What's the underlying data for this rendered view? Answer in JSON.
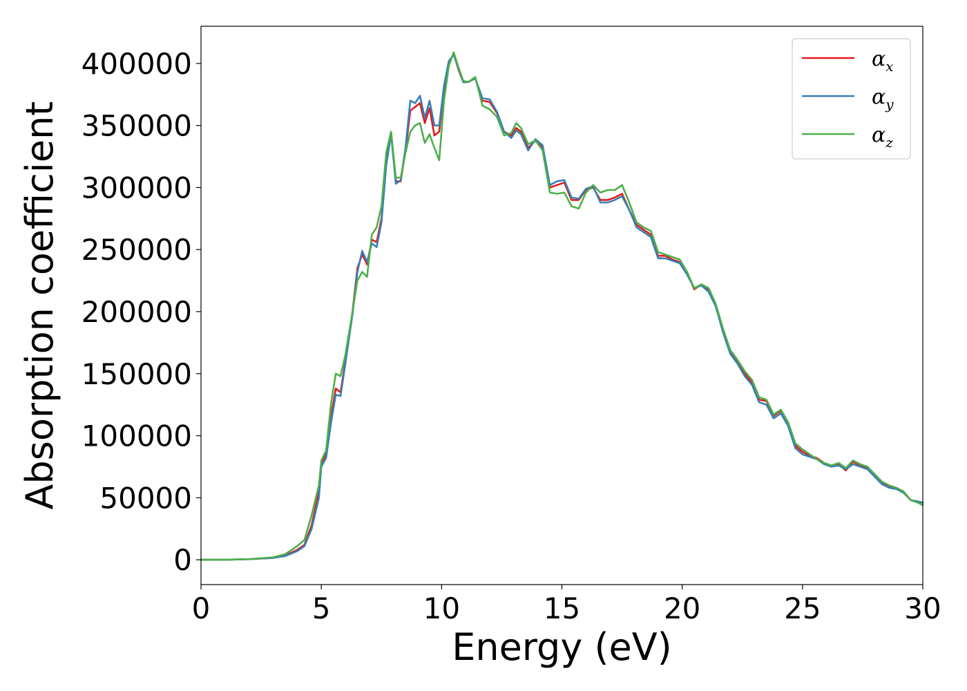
{
  "chart_data": {
    "type": "line",
    "title": "",
    "xlabel": "Energy (eV)",
    "ylabel": "Absorption coefficient",
    "xlim": [
      0,
      30
    ],
    "ylim": [
      -20000,
      430000
    ],
    "xticks": [
      0,
      5,
      10,
      15,
      20,
      25,
      30
    ],
    "yticks": [
      0,
      50000,
      100000,
      150000,
      200000,
      250000,
      300000,
      350000,
      400000
    ],
    "grid": false,
    "legend": "top-right",
    "series": [
      {
        "name": "αx",
        "symbol": "α",
        "subscript": "x",
        "color": "#e41a1c",
        "x": [
          0,
          1,
          2,
          3,
          3.5,
          4,
          4.3,
          4.6,
          4.9,
          5.0,
          5.2,
          5.4,
          5.6,
          5.8,
          6.0,
          6.3,
          6.5,
          6.7,
          6.9,
          7.1,
          7.3,
          7.5,
          7.7,
          7.9,
          8.1,
          8.3,
          8.5,
          8.7,
          8.9,
          9.1,
          9.3,
          9.5,
          9.7,
          9.9,
          10.1,
          10.3,
          10.5,
          10.7,
          10.9,
          11.1,
          11.4,
          11.7,
          12.0,
          12.3,
          12.6,
          12.9,
          13.1,
          13.3,
          13.6,
          13.9,
          14.2,
          14.5,
          14.8,
          15.1,
          15.4,
          15.7,
          16.0,
          16.3,
          16.6,
          16.9,
          17.2,
          17.5,
          17.8,
          18.1,
          18.4,
          18.7,
          19.0,
          19.3,
          19.6,
          19.9,
          20.2,
          20.5,
          20.8,
          21.1,
          21.4,
          21.7,
          22.0,
          22.3,
          22.6,
          22.9,
          23.2,
          23.5,
          23.8,
          24.1,
          24.4,
          24.7,
          25.0,
          25.3,
          25.6,
          25.9,
          26.2,
          26.5,
          26.8,
          27.1,
          27.4,
          27.7,
          28.0,
          28.3,
          28.6,
          28.9,
          29.2,
          29.5,
          29.8,
          30.0
        ],
        "values": [
          0,
          0,
          500,
          1500,
          3500,
          8000,
          12000,
          28000,
          55000,
          78000,
          85000,
          115000,
          138000,
          135000,
          160000,
          200000,
          235000,
          246000,
          238000,
          258000,
          256000,
          275000,
          320000,
          344000,
          305000,
          305000,
          330000,
          362000,
          365000,
          368000,
          352000,
          364000,
          342000,
          345000,
          380000,
          400000,
          408000,
          395000,
          385000,
          385000,
          388000,
          370000,
          369000,
          360000,
          345000,
          342000,
          348000,
          345000,
          332000,
          338000,
          332000,
          300000,
          302000,
          304000,
          290000,
          290000,
          298000,
          300000,
          290000,
          290000,
          292000,
          295000,
          282000,
          270000,
          266000,
          262000,
          245000,
          245000,
          242000,
          240000,
          232000,
          218000,
          222000,
          217000,
          205000,
          185000,
          168000,
          160000,
          150000,
          143000,
          129000,
          128000,
          116000,
          120000,
          110000,
          92000,
          87000,
          84000,
          82000,
          78000,
          76000,
          77000,
          72000,
          79000,
          76000,
          74000,
          68000,
          62000,
          59000,
          58000,
          55000,
          48000,
          47000,
          46000
        ]
      },
      {
        "name": "αy",
        "symbol": "α",
        "subscript": "y",
        "color": "#377eb8",
        "x": [
          0,
          1,
          2,
          3,
          3.5,
          4,
          4.3,
          4.6,
          4.9,
          5.0,
          5.2,
          5.4,
          5.6,
          5.8,
          6.0,
          6.3,
          6.5,
          6.7,
          6.9,
          7.1,
          7.3,
          7.5,
          7.7,
          7.9,
          8.1,
          8.3,
          8.5,
          8.7,
          8.9,
          9.1,
          9.3,
          9.5,
          9.7,
          9.9,
          10.1,
          10.3,
          10.5,
          10.7,
          10.9,
          11.1,
          11.4,
          11.7,
          12.0,
          12.3,
          12.6,
          12.9,
          13.1,
          13.3,
          13.6,
          13.9,
          14.2,
          14.5,
          14.8,
          15.1,
          15.4,
          15.7,
          16.0,
          16.3,
          16.6,
          16.9,
          17.2,
          17.5,
          17.8,
          18.1,
          18.4,
          18.7,
          19.0,
          19.3,
          19.6,
          19.9,
          20.2,
          20.5,
          20.8,
          21.1,
          21.4,
          21.7,
          22.0,
          22.3,
          22.6,
          22.9,
          23.2,
          23.5,
          23.8,
          24.1,
          24.4,
          24.7,
          25.0,
          25.3,
          25.6,
          25.9,
          26.2,
          26.5,
          26.8,
          27.1,
          27.4,
          27.7,
          28.0,
          28.3,
          28.6,
          28.9,
          29.2,
          29.5,
          29.8,
          30.0
        ],
        "values": [
          0,
          0,
          500,
          1500,
          3000,
          7000,
          11000,
          25000,
          50000,
          75000,
          82000,
          110000,
          133000,
          132000,
          158000,
          198000,
          232000,
          249000,
          240000,
          255000,
          252000,
          272000,
          318000,
          343000,
          303000,
          306000,
          332000,
          370000,
          368000,
          374000,
          356000,
          370000,
          350000,
          350000,
          382000,
          402000,
          407000,
          396000,
          385000,
          385000,
          388000,
          372000,
          371000,
          361000,
          345000,
          340000,
          346000,
          343000,
          330000,
          339000,
          334000,
          302000,
          305000,
          306000,
          292000,
          291000,
          299000,
          301000,
          288000,
          288000,
          290000,
          293000,
          282000,
          268000,
          264000,
          260000,
          243000,
          243000,
          241000,
          239000,
          230000,
          219000,
          221000,
          216000,
          204000,
          183000,
          166000,
          158000,
          148000,
          141000,
          127000,
          125000,
          114000,
          118000,
          108000,
          90000,
          85000,
          83000,
          81000,
          77000,
          75000,
          76000,
          73000,
          77000,
          75000,
          73000,
          67000,
          61000,
          58000,
          57000,
          54000,
          48000,
          47000,
          46000
        ]
      },
      {
        "name": "αz",
        "symbol": "α",
        "subscript": "z",
        "color": "#4daf4a",
        "x": [
          0,
          1,
          2,
          3,
          3.5,
          4,
          4.3,
          4.6,
          4.9,
          5.0,
          5.2,
          5.4,
          5.6,
          5.8,
          6.0,
          6.3,
          6.5,
          6.7,
          6.9,
          7.1,
          7.3,
          7.5,
          7.7,
          7.9,
          8.1,
          8.3,
          8.5,
          8.7,
          8.9,
          9.1,
          9.3,
          9.5,
          9.7,
          9.9,
          10.1,
          10.3,
          10.5,
          10.7,
          10.9,
          11.1,
          11.4,
          11.7,
          12.0,
          12.3,
          12.6,
          12.9,
          13.1,
          13.3,
          13.6,
          13.9,
          14.2,
          14.5,
          14.8,
          15.1,
          15.4,
          15.7,
          16.0,
          16.3,
          16.6,
          16.9,
          17.2,
          17.5,
          17.8,
          18.1,
          18.4,
          18.7,
          19.0,
          19.3,
          19.6,
          19.9,
          20.2,
          20.5,
          20.8,
          21.1,
          21.4,
          21.7,
          22.0,
          22.3,
          22.6,
          22.9,
          23.2,
          23.5,
          23.8,
          24.1,
          24.4,
          24.7,
          25.0,
          25.3,
          25.6,
          25.9,
          26.2,
          26.5,
          26.8,
          27.1,
          27.4,
          27.7,
          28.0,
          28.3,
          28.6,
          28.9,
          29.2,
          29.5,
          29.8,
          30.0
        ],
        "values": [
          0,
          0,
          500,
          2000,
          4500,
          11000,
          16000,
          36000,
          60000,
          80000,
          88000,
          125000,
          150000,
          148000,
          165000,
          200000,
          225000,
          232000,
          228000,
          262000,
          268000,
          285000,
          328000,
          345000,
          308000,
          308000,
          328000,
          345000,
          350000,
          352000,
          336000,
          343000,
          332000,
          322000,
          370000,
          398000,
          409000,
          397000,
          386000,
          385000,
          389000,
          366000,
          363000,
          357000,
          342000,
          344000,
          352000,
          348000,
          335000,
          338000,
          330000,
          296000,
          295000,
          296000,
          285000,
          283000,
          296000,
          302000,
          296000,
          298000,
          298000,
          302000,
          288000,
          272000,
          268000,
          265000,
          248000,
          246000,
          244000,
          242000,
          232000,
          219000,
          222000,
          219000,
          206000,
          186000,
          169000,
          161000,
          152000,
          145000,
          131000,
          129000,
          117000,
          121000,
          111000,
          94000,
          89000,
          85000,
          81000,
          78000,
          76000,
          78000,
          74000,
          80000,
          77000,
          75000,
          69000,
          63000,
          60000,
          58000,
          55000,
          48000,
          46000,
          44000
        ]
      }
    ]
  }
}
